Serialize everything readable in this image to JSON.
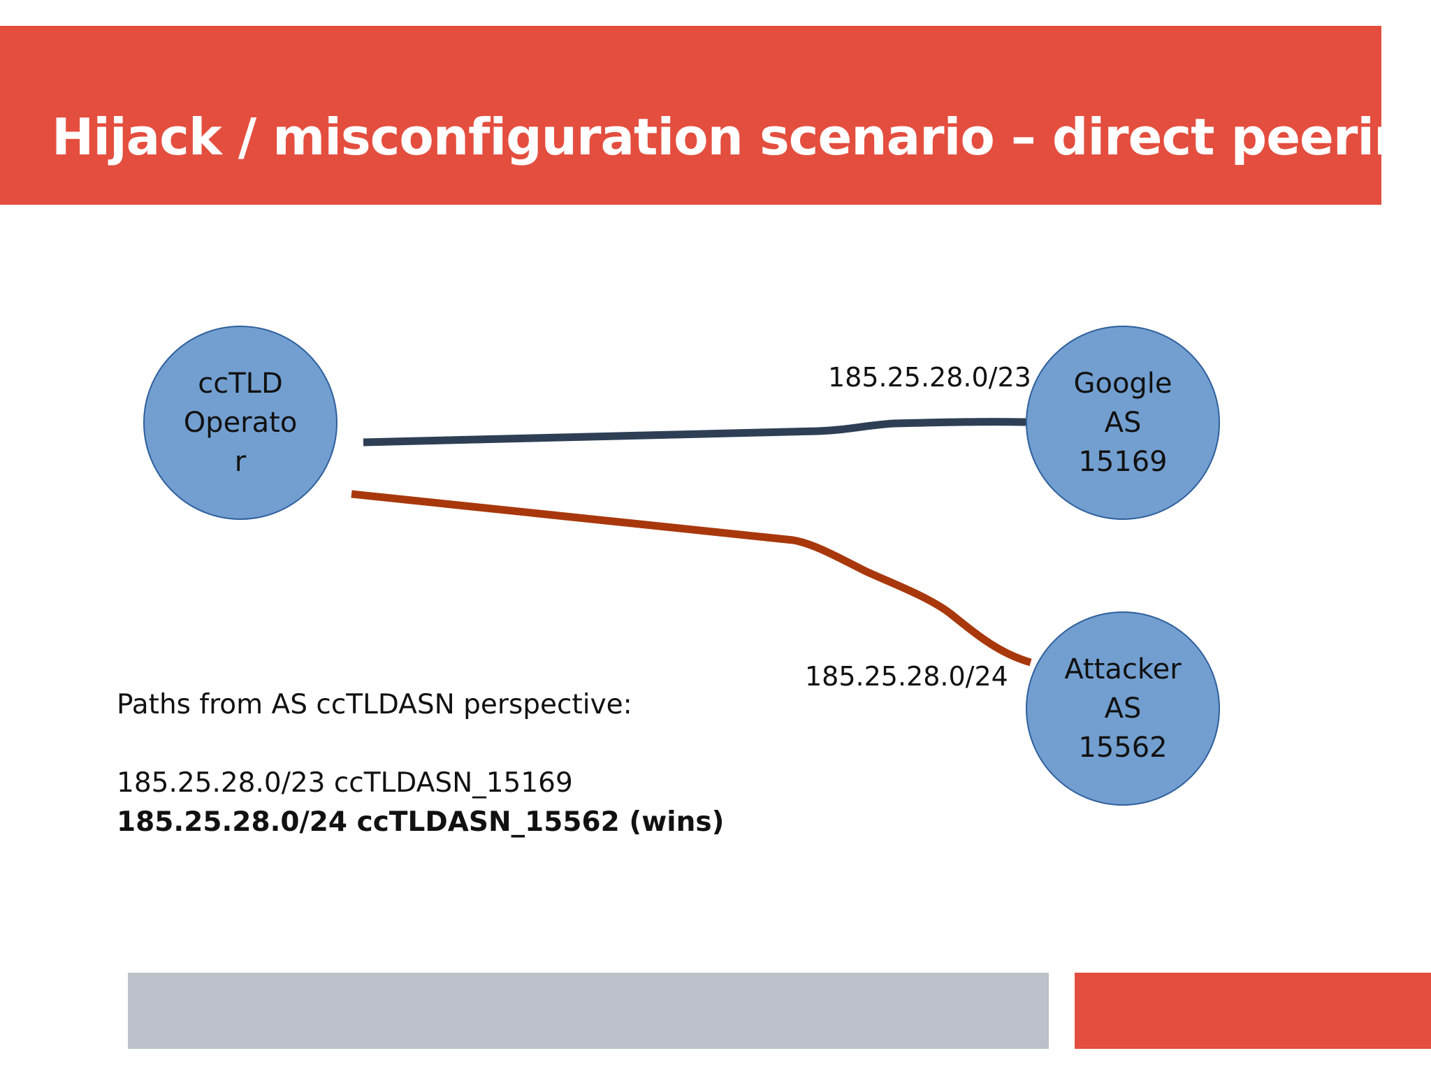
{
  "title": "Hijack / misconfiguration scenario – direct peering",
  "nodes": {
    "cctld": {
      "lines": [
        "ccTLD",
        "Operato",
        "r"
      ]
    },
    "google": {
      "lines": [
        "Google",
        "AS",
        "15169"
      ]
    },
    "attacker": {
      "lines": [
        "Attacker",
        "AS",
        "15562"
      ]
    }
  },
  "edges": {
    "google_label": "185.25.28.0/23",
    "attacker_label": "185.25.28.0/24"
  },
  "colors": {
    "title_bar": "#e44e3f",
    "node_fill": "#729fd0",
    "google_edge": "#2e3f55",
    "attacker_edge": "#a8380c",
    "footer_gray": "#bcc1c9",
    "footer_red": "#e44e3f"
  },
  "paths": {
    "heading": "Paths from AS ccTLDASN perspective:",
    "line1": "185.25.28.0/23 ccTLDASN_15169",
    "line2": "185.25.28.0/24 ccTLDASN_15562 (wins)"
  }
}
